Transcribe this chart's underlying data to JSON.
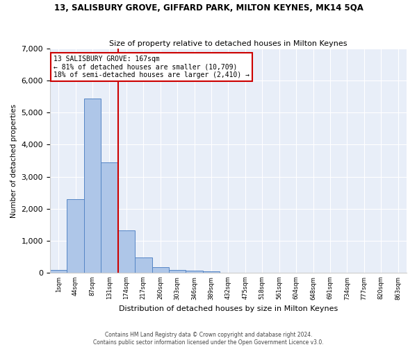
{
  "title": "13, SALISBURY GROVE, GIFFARD PARK, MILTON KEYNES, MK14 5QA",
  "subtitle": "Size of property relative to detached houses in Milton Keynes",
  "xlabel": "Distribution of detached houses by size in Milton Keynes",
  "ylabel": "Number of detached properties",
  "footer_line1": "Contains HM Land Registry data © Crown copyright and database right 2024.",
  "footer_line2": "Contains public sector information licensed under the Open Government Licence v3.0.",
  "property_label": "13 SALISBURY GROVE: 167sqm",
  "annotation_left": "← 81% of detached houses are smaller (10,709)",
  "annotation_right": "18% of semi-detached houses are larger (2,410) →",
  "property_bin_index": 3,
  "bar_color": "#aec6e8",
  "bar_edge_color": "#5585c5",
  "vline_color": "#cc0000",
  "annotation_box_color": "#cc0000",
  "background_color": "#e8eef8",
  "ylim": [
    0,
    7000
  ],
  "categories": [
    "1sqm",
    "44sqm",
    "87sqm",
    "131sqm",
    "174sqm",
    "217sqm",
    "260sqm",
    "303sqm",
    "346sqm",
    "389sqm",
    "432sqm",
    "475sqm",
    "518sqm",
    "561sqm",
    "604sqm",
    "648sqm",
    "691sqm",
    "734sqm",
    "777sqm",
    "820sqm",
    "863sqm"
  ],
  "values": [
    80,
    2300,
    5450,
    3450,
    1320,
    480,
    160,
    80,
    55,
    30,
    0,
    0,
    0,
    0,
    0,
    0,
    0,
    0,
    0,
    0,
    0
  ]
}
